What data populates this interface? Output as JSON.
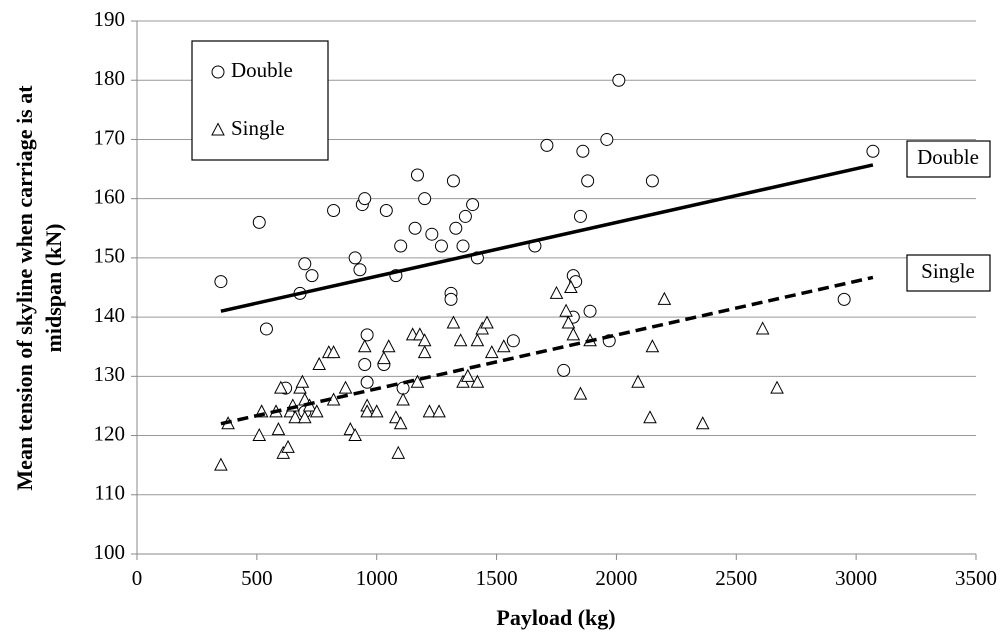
{
  "chart_data": {
    "type": "scatter",
    "xlabel": "Payload (kg)",
    "ylabel": [
      "Mean tension of skyline when carriage is at",
      "midspan (kN)"
    ],
    "xlim": [
      0,
      3500
    ],
    "xticks": [
      0,
      500,
      1000,
      1500,
      2000,
      2500,
      3000,
      3500
    ],
    "ylim": [
      100,
      190
    ],
    "yticks": [
      100,
      110,
      120,
      130,
      140,
      150,
      160,
      170,
      180,
      190
    ],
    "grid": true,
    "legend": "upper-left",
    "series": [
      {
        "name": "Double",
        "marker": "circle",
        "color": "#000000",
        "x": [
          350,
          510,
          540,
          620,
          680,
          700,
          730,
          700,
          820,
          910,
          930,
          940,
          950,
          950,
          960,
          960,
          1030,
          1040,
          1080,
          1100,
          1110,
          1160,
          1170,
          1200,
          1230,
          1270,
          1310,
          1310,
          1320,
          1330,
          1360,
          1370,
          1400,
          1420,
          1570,
          1660,
          1710,
          1780,
          1820,
          1820,
          1830,
          1850,
          1860,
          1880,
          1890,
          1960,
          1970,
          2010,
          2150,
          2950,
          3070
        ],
        "values": [
          146,
          156,
          138,
          128,
          144,
          149,
          147,
          124,
          158,
          150,
          148,
          159,
          160,
          132,
          137,
          129,
          132,
          158,
          147,
          152,
          128,
          155,
          164,
          160,
          154,
          152,
          144,
          143,
          163,
          155,
          152,
          157,
          159,
          150,
          136,
          152,
          169,
          131,
          140,
          147,
          146,
          157,
          168,
          163,
          141,
          170,
          136,
          180,
          163,
          143,
          168
        ]
      },
      {
        "name": "Single",
        "marker": "triangle",
        "color": "#000000",
        "x": [
          350,
          380,
          510,
          520,
          580,
          590,
          600,
          610,
          630,
          640,
          650,
          660,
          680,
          690,
          700,
          700,
          720,
          750,
          760,
          800,
          820,
          820,
          870,
          890,
          910,
          950,
          960,
          960,
          1000,
          1030,
          1050,
          1080,
          1090,
          1100,
          1110,
          1150,
          1170,
          1180,
          1200,
          1200,
          1220,
          1260,
          1320,
          1350,
          1360,
          1380,
          1420,
          1420,
          1440,
          1460,
          1480,
          1530,
          1750,
          1790,
          1800,
          1810,
          1820,
          1850,
          1890,
          2090,
          2140,
          2150,
          2200,
          2360,
          2610,
          2670
        ],
        "values": [
          115,
          122,
          120,
          124,
          124,
          121,
          128,
          117,
          118,
          124,
          125,
          123,
          128,
          129,
          123,
          126,
          125,
          124,
          132,
          134,
          134,
          126,
          128,
          121,
          120,
          135,
          125,
          124,
          124,
          133,
          135,
          123,
          117,
          122,
          126,
          137,
          129,
          137,
          134,
          136,
          124,
          124,
          139,
          136,
          129,
          130,
          129,
          136,
          138,
          139,
          134,
          135,
          144,
          141,
          139,
          145,
          137,
          127,
          136,
          129,
          123,
          135,
          143,
          122,
          138,
          128
        ]
      }
    ],
    "trendlines": [
      {
        "label": "Double",
        "dashed": false,
        "x": [
          350,
          3070
        ],
        "values": [
          141,
          165.7
        ]
      },
      {
        "label": "Single",
        "dashed": true,
        "x": [
          350,
          3070
        ],
        "values": [
          122,
          146.7
        ]
      }
    ]
  }
}
